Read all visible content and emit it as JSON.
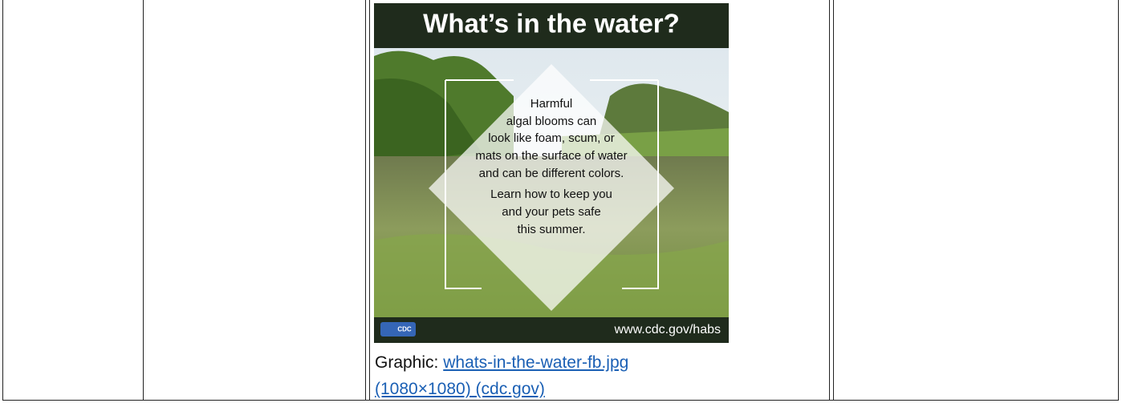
{
  "image": {
    "title": "What’s in the water?",
    "message": [
      "Harmful",
      "algal blooms can",
      "look like foam, scum, or",
      "mats on the surface of water",
      "and can be different colors.",
      "Learn how to keep you",
      "and your pets safe",
      "this summer."
    ],
    "logo": "CDC",
    "url": "www.cdc.gov/habs"
  },
  "caption": {
    "label": "Graphic:",
    "link": "whats-in-the-water-fb.jpg (1080×1080) (cdc.gov)"
  }
}
